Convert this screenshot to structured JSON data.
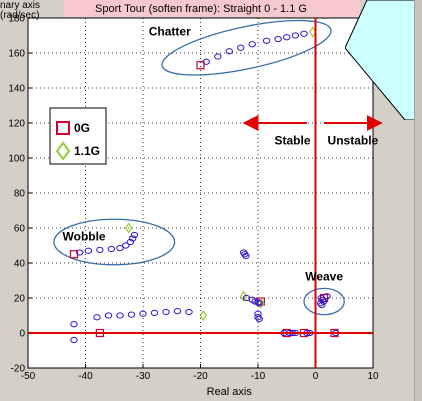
{
  "chart_data": {
    "type": "scatter",
    "title": "Sport Tour (soften frame): Straight 0 - 1.1 G",
    "ylabel_lines": [
      "nary axis",
      "(rad/sec)"
    ],
    "xlabel": "Real axis",
    "xlim": [
      -50,
      10
    ],
    "ylim": [
      -20,
      180
    ],
    "xticks": [
      -50,
      -40,
      -30,
      -20,
      -10,
      0,
      10
    ],
    "yticks": [
      -20,
      0,
      20,
      40,
      60,
      80,
      100,
      120,
      140,
      160,
      180
    ],
    "grid": true,
    "legend": {
      "position": "left",
      "entries": [
        {
          "label": "0G",
          "marker": "square",
          "color": "#cc0033"
        },
        {
          "label": "1.1G",
          "marker": "diamond",
          "color": "#99cc33"
        }
      ]
    },
    "stability_line_x": 0,
    "colors": {
      "circles": "#3311cc",
      "ellipse": "#3a6ea8",
      "line": "#e00000",
      "plot_bg": "#ffffff"
    },
    "series": [
      {
        "name": "0G",
        "marker": "square",
        "points": [
          [
            -20,
            153
          ],
          [
            -42,
            45
          ],
          [
            -37.5,
            0
          ],
          [
            -9.5,
            18
          ],
          [
            1.5,
            20
          ],
          [
            -5,
            0
          ],
          [
            -2,
            0
          ],
          [
            3.3,
            0
          ]
        ]
      },
      {
        "name": "1.1G",
        "marker": "diamond",
        "points": [
          [
            -0.5,
            172
          ],
          [
            -32.5,
            60
          ],
          [
            -19.5,
            10
          ],
          [
            -12.5,
            21
          ],
          [
            -9.5,
            17
          ]
        ]
      },
      {
        "marker": "circle",
        "points": [
          [
            -19,
            155
          ],
          [
            -17,
            158
          ],
          [
            -15,
            161
          ],
          [
            -13,
            163
          ],
          [
            -11,
            165
          ],
          [
            -8.5,
            167
          ],
          [
            -6.5,
            168
          ],
          [
            -5,
            169
          ],
          [
            -3.5,
            170
          ],
          [
            -2,
            171
          ],
          [
            -41,
            46
          ],
          [
            -39.5,
            47
          ],
          [
            -37.5,
            47.5
          ],
          [
            -35.5,
            48
          ],
          [
            -34,
            48.5
          ],
          [
            -33,
            50
          ],
          [
            -32.2,
            52
          ],
          [
            -31.8,
            54
          ],
          [
            -31.5,
            56
          ],
          [
            -42,
            5
          ],
          [
            -42,
            -4
          ],
          [
            -38,
            9
          ],
          [
            -36,
            10
          ],
          [
            -34,
            10
          ],
          [
            -32,
            10.5
          ],
          [
            -30,
            11
          ],
          [
            -28,
            11.5
          ],
          [
            -26,
            12
          ],
          [
            -24,
            12.5
          ],
          [
            -22,
            12
          ],
          [
            -12.5,
            46
          ],
          [
            -12.3,
            45
          ],
          [
            -12.1,
            44
          ],
          [
            -12,
            20
          ],
          [
            -11,
            19
          ],
          [
            -10.5,
            18
          ],
          [
            -10,
            17.5
          ],
          [
            -9.8,
            17
          ],
          [
            -10,
            11
          ],
          [
            -10,
            9
          ],
          [
            -9.8,
            8
          ],
          [
            1,
            20
          ],
          [
            1.2,
            19
          ],
          [
            0.9,
            17
          ],
          [
            1.1,
            16
          ],
          [
            1.4,
            18
          ],
          [
            2,
            21
          ],
          [
            -5.5,
            0
          ],
          [
            -4.5,
            0
          ],
          [
            -4,
            0
          ],
          [
            -3.5,
            0
          ],
          [
            -1.5,
            0
          ],
          [
            -1,
            0
          ],
          [
            3.5,
            0
          ]
        ]
      }
    ],
    "regions": [
      {
        "label": "Chatter",
        "cx": -12,
        "cy": 163,
        "rx": 15,
        "ry": 12,
        "rotate": -12
      },
      {
        "label": "Wobble",
        "cx": -35,
        "cy": 52,
        "rx": 10.5,
        "ry": 13,
        "rotate": 0
      },
      {
        "label": "Weave",
        "cx": 1.5,
        "cy": 18,
        "rx": 3.5,
        "ry": 7.5,
        "rotate": 0
      }
    ],
    "annotations": [
      {
        "text": "Stable",
        "x": -4,
        "y": 110
      },
      {
        "text": "Unstable",
        "x": 6.5,
        "y": 110
      }
    ]
  }
}
